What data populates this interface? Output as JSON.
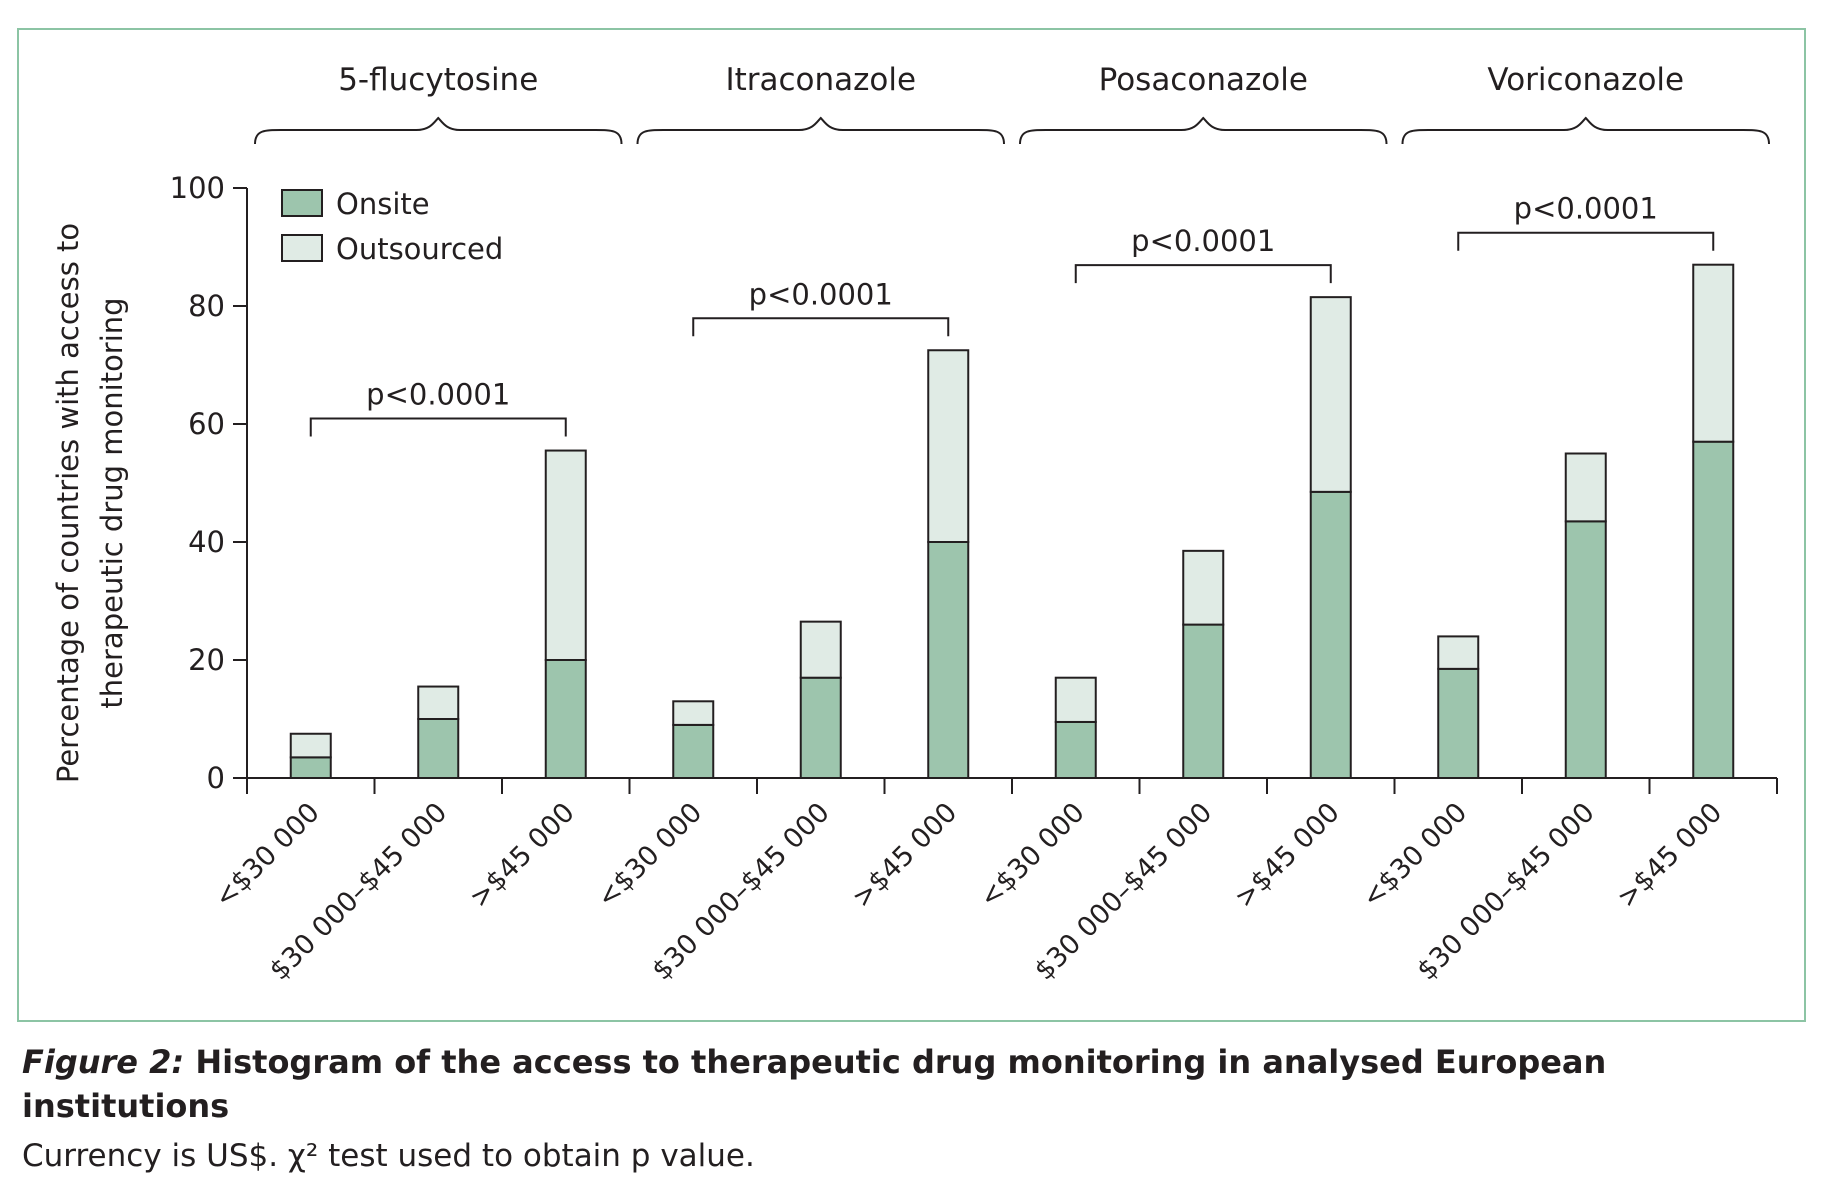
{
  "chart_data": {
    "type": "bar",
    "stacked": true,
    "ylabel": "Percentage of countries with access to therapeutic drug monitoring",
    "ylabel_lines": [
      "Percentage  of countries with access to",
      "therapeutic drug monitoring"
    ],
    "ylim": [
      0,
      100
    ],
    "yticks": [
      0,
      20,
      40,
      60,
      80,
      100
    ],
    "legend": {
      "position": "top-left"
    },
    "colors": {
      "Onsite": "#9dc5ad",
      "Outsourced": "#e0ebe5"
    },
    "categories": [
      "<$30 000",
      "$30 000–$45 000",
      ">$45 000"
    ],
    "groups": [
      {
        "name": "5-flucytosine",
        "p_value": "p<0.0001",
        "onsite": [
          3.5,
          10,
          20
        ],
        "outsourced": [
          4,
          5.5,
          35.5
        ]
      },
      {
        "name": "Itraconazole",
        "p_value": "p<0.0001",
        "onsite": [
          9,
          17,
          40
        ],
        "outsourced": [
          4,
          9.5,
          32.5
        ]
      },
      {
        "name": "Posaconazole",
        "p_value": "p<0.0001",
        "onsite": [
          9.5,
          26,
          48.5
        ],
        "outsourced": [
          7.5,
          12.5,
          33
        ]
      },
      {
        "name": "Voriconazole",
        "p_value": "p<0.0001",
        "onsite": [
          18.5,
          43.5,
          57
        ],
        "outsourced": [
          5.5,
          11.5,
          30
        ]
      }
    ],
    "series": [
      {
        "name": "Onsite"
      },
      {
        "name": "Outsourced"
      }
    ],
    "grid": false
  },
  "caption": {
    "label": "Figure 2:",
    "title": "Histogram of the access to therapeutic drug monitoring in analysed European institutions",
    "note": "Currency is US$. χ² test used to obtain p value."
  }
}
